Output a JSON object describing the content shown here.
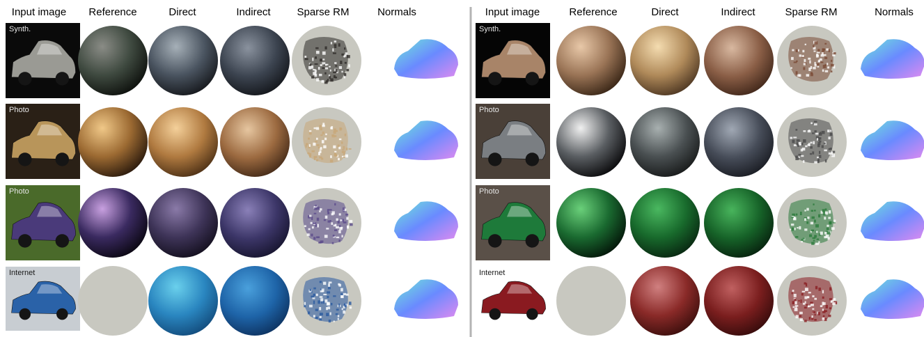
{
  "figure": {
    "columns": [
      "Input image",
      "Reference",
      "Direct",
      "Indirect",
      "Sparse RM",
      "Normals"
    ],
    "left_panel": {
      "rows": [
        {
          "source": "Synth.",
          "object": "car-gray",
          "colors": {
            "photo_bg": "#0a0a0a",
            "car": "#9a9a94",
            "reference": [
              "#8a8c86",
              "#3f4a40",
              "#0f120e"
            ],
            "direct": [
              "#a6b0b8",
              "#4a5460",
              "#14161a"
            ],
            "indirect": [
              "#8a929e",
              "#3c4450",
              "#101216"
            ],
            "sparse": "#2e2b28"
          },
          "reference_available": true
        },
        {
          "source": "Photo",
          "object": "car-gold",
          "colors": {
            "photo_bg": "#2a2016",
            "car": "#b8955a",
            "reference": [
              "#f0c888",
              "#9c6a32",
              "#2e1c0e"
            ],
            "direct": [
              "#f4d09a",
              "#b07a40",
              "#4a2e14"
            ],
            "indirect": [
              "#e6c6a0",
              "#9c6a40",
              "#3c2414"
            ],
            "sparse": "#c8a878"
          },
          "reference_available": true
        },
        {
          "source": "Photo",
          "object": "car-purple",
          "colors": {
            "photo_bg": "#4a6a2a",
            "car": "#4a3a7a",
            "reference": [
              "#c8a0e0",
              "#3a2a60",
              "#0c0814"
            ],
            "direct": [
              "#8a7aa8",
              "#3e3458",
              "#120e1c"
            ],
            "indirect": [
              "#8a80b8",
              "#3c3668",
              "#14122a"
            ],
            "sparse": "#5a4a8a"
          },
          "reference_available": true
        },
        {
          "source": "Internet",
          "object": "car-blue",
          "colors": {
            "photo_bg": "#c8cdd2",
            "car": "#2a62a8",
            "reference": [
              "#c8c8c0",
              "#c8c8c0",
              "#c8c8c0"
            ],
            "direct": [
              "#6ad0ec",
              "#2a86c0",
              "#124a7a"
            ],
            "indirect": [
              "#4aa0dc",
              "#1e64a8",
              "#0c2e5a"
            ],
            "sparse": "#2a5aa0"
          },
          "reference_available": false
        }
      ]
    },
    "right_panel": {
      "rows": [
        {
          "source": "Synth.",
          "object": "car-bronze",
          "colors": {
            "photo_bg": "#050505",
            "car": "#a88468",
            "reference": [
              "#e8c8a8",
              "#9a7456",
              "#3c2818"
            ],
            "direct": [
              "#f4dcb0",
              "#b08a5a",
              "#4a3420"
            ],
            "indirect": [
              "#d8b8a0",
              "#8a5e46",
              "#3a2216"
            ],
            "sparse": "#7a4a34"
          },
          "reference_available": true
        },
        {
          "source": "Photo",
          "object": "car-silver",
          "colors": {
            "photo_bg": "#4a4038",
            "car": "#7a7e82",
            "reference": [
              "#f0f0f0",
              "#5a5e62",
              "#0c0c0e"
            ],
            "direct": [
              "#a8b0b0",
              "#4a5052",
              "#161818"
            ],
            "indirect": [
              "#a0a8b4",
              "#464c58",
              "#16181e"
            ],
            "sparse": "#4a4a4a"
          },
          "reference_available": true
        },
        {
          "source": "Photo",
          "object": "car-green",
          "colors": {
            "photo_bg": "#5a5048",
            "car": "#1e7a3a",
            "reference": [
              "#6ad07a",
              "#1a6a30",
              "#04180a"
            ],
            "direct": [
              "#4ab860",
              "#186a2c",
              "#082410"
            ],
            "indirect": [
              "#48b45c",
              "#166228",
              "#061c0c"
            ],
            "sparse": "#2a7a3a"
          },
          "reference_available": true
        },
        {
          "source": "Internet",
          "object": "car-red",
          "colors": {
            "photo_bg": "#ffffff",
            "car": "#8a1a20",
            "reference": [
              "#c8c8c0",
              "#c8c8c0",
              "#c8c8c0"
            ],
            "direct": [
              "#d08080",
              "#8a2a28",
              "#3a0e0c"
            ],
            "indirect": [
              "#c06060",
              "#7a1e1e",
              "#300a0a"
            ],
            "sparse": "#8a1e22"
          },
          "reference_available": false
        }
      ]
    },
    "colors": {
      "sphere_placeholder": "#c8c8c0",
      "divider": "#b4b4b4",
      "normals_a": "#70e8d8",
      "normals_b": "#6a8aff",
      "normals_c": "#e08af0"
    }
  }
}
